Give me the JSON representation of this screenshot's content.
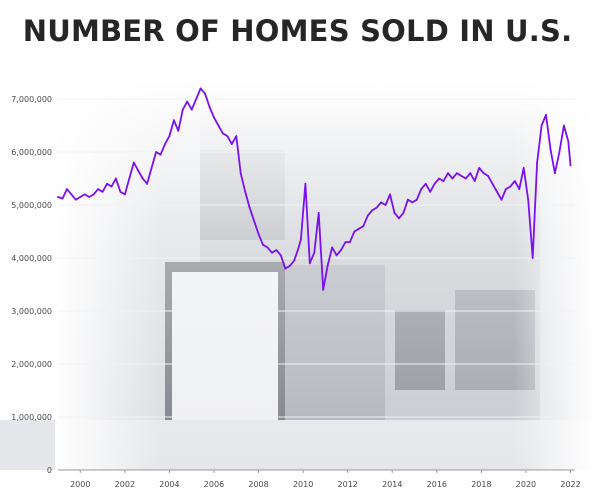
{
  "chart_data": {
    "type": "line",
    "title": "NUMBER OF HOMES SOLD IN U.S.",
    "xlabel": "",
    "ylabel": "",
    "xlim": [
      1999.0,
      2022.2
    ],
    "ylim": [
      0,
      7000000
    ],
    "grid": true,
    "line_color": "#7b10f0",
    "y_ticks": [
      {
        "value": 0,
        "label": "0"
      },
      {
        "value": 1000000,
        "label": "1,000,000"
      },
      {
        "value": 2000000,
        "label": "2,000,000"
      },
      {
        "value": 3000000,
        "label": "3,000,000"
      },
      {
        "value": 4000000,
        "label": "4,000,000"
      },
      {
        "value": 5000000,
        "label": "5,000,000"
      },
      {
        "value": 6000000,
        "label": "6,000,000"
      },
      {
        "value": 7000000,
        "label": "7,000,000"
      }
    ],
    "x_ticks": [
      {
        "value": 2000,
        "label": "2000"
      },
      {
        "value": 2002,
        "label": "2002"
      },
      {
        "value": 2004,
        "label": "2004"
      },
      {
        "value": 2006,
        "label": "2006"
      },
      {
        "value": 2008,
        "label": "2008"
      },
      {
        "value": 2010,
        "label": "2010"
      },
      {
        "value": 2012,
        "label": "2012"
      },
      {
        "value": 2014,
        "label": "2014"
      },
      {
        "value": 2016,
        "label": "2016"
      },
      {
        "value": 2018,
        "label": "2018"
      },
      {
        "value": 2020,
        "label": "2020"
      },
      {
        "value": 2022,
        "label": "2022"
      }
    ],
    "series": [
      {
        "x": [
          1999.0,
          1999.2,
          1999.4,
          1999.6,
          1999.8,
          2000.0,
          2000.2,
          2000.4,
          2000.6,
          2000.8,
          2001.0,
          2001.2,
          2001.4,
          2001.6,
          2001.8,
          2002.0,
          2002.2,
          2002.4,
          2002.6,
          2002.8,
          2003.0,
          2003.2,
          2003.4,
          2003.6,
          2003.8,
          2004.0,
          2004.2,
          2004.4,
          2004.6,
          2004.8,
          2005.0,
          2005.2,
          2005.4,
          2005.6,
          2005.8,
          2006.0,
          2006.2,
          2006.4,
          2006.6,
          2006.8,
          2007.0,
          2007.2,
          2007.4,
          2007.6,
          2007.8,
          2008.0,
          2008.2,
          2008.4,
          2008.6,
          2008.8,
          2009.0,
          2009.2,
          2009.4,
          2009.6,
          2009.8,
          2009.9,
          2010.1,
          2010.3,
          2010.5,
          2010.7,
          2010.9,
          2011.1,
          2011.3,
          2011.5,
          2011.7,
          2011.9,
          2012.1,
          2012.3,
          2012.5,
          2012.7,
          2012.9,
          2013.1,
          2013.3,
          2013.5,
          2013.7,
          2013.9,
          2014.1,
          2014.3,
          2014.5,
          2014.7,
          2014.9,
          2015.1,
          2015.3,
          2015.5,
          2015.7,
          2015.9,
          2016.1,
          2016.3,
          2016.5,
          2016.7,
          2016.9,
          2017.1,
          2017.3,
          2017.5,
          2017.7,
          2017.9,
          2018.1,
          2018.3,
          2018.5,
          2018.7,
          2018.9,
          2019.1,
          2019.3,
          2019.5,
          2019.7,
          2019.9,
          2020.1,
          2020.3,
          2020.5,
          2020.7,
          2020.9,
          2021.1,
          2021.3,
          2021.5,
          2021.7,
          2021.9,
          2022.0
        ],
        "values": [
          5150000,
          5120000,
          5300000,
          5200000,
          5100000,
          5150000,
          5200000,
          5150000,
          5200000,
          5300000,
          5250000,
          5400000,
          5350000,
          5500000,
          5250000,
          5200000,
          5500000,
          5800000,
          5650000,
          5500000,
          5400000,
          5700000,
          6000000,
          5950000,
          6150000,
          6300000,
          6600000,
          6400000,
          6800000,
          6950000,
          6800000,
          7000000,
          7200000,
          7100000,
          6850000,
          6650000,
          6500000,
          6350000,
          6300000,
          6150000,
          6300000,
          5600000,
          5250000,
          4950000,
          4700000,
          4450000,
          4250000,
          4200000,
          4100000,
          4150000,
          4050000,
          3800000,
          3850000,
          3950000,
          4200000,
          4350000,
          5400000,
          3900000,
          4100000,
          4850000,
          3400000,
          3850000,
          4200000,
          4050000,
          4150000,
          4300000,
          4300000,
          4500000,
          4550000,
          4600000,
          4800000,
          4900000,
          4950000,
          5050000,
          5000000,
          5200000,
          4850000,
          4750000,
          4850000,
          5100000,
          5050000,
          5100000,
          5300000,
          5400000,
          5250000,
          5400000,
          5500000,
          5450000,
          5600000,
          5500000,
          5600000,
          5550000,
          5500000,
          5600000,
          5450000,
          5700000,
          5600000,
          5550000,
          5400000,
          5250000,
          5100000,
          5300000,
          5350000,
          5450000,
          5300000,
          5700000,
          5100000,
          4000000,
          5800000,
          6500000,
          6700000,
          6050000,
          5600000,
          6000000,
          6500000,
          6200000,
          5750000
        ]
      }
    ]
  }
}
